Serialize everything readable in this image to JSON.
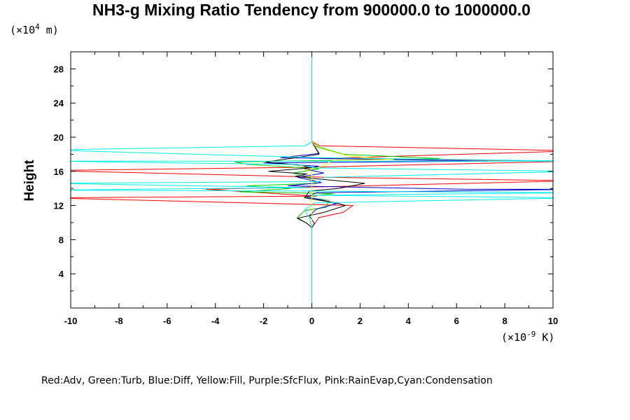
{
  "chart_data": {
    "type": "line",
    "title": "NH3-g Mixing Ratio Tendency from 900000.0 to 1000000.0",
    "ylabel": "Height",
    "xlabel": "",
    "y_unit": {
      "prefix": "(×10",
      "exp": "4",
      "suffix": " m)"
    },
    "x_unit": {
      "prefix": "(×10",
      "exp": "-9",
      "suffix": " K)"
    },
    "xlim": [
      -10,
      10
    ],
    "ylim": [
      0,
      30
    ],
    "x_ticks": [
      -10,
      -8,
      -6,
      -4,
      -2,
      0,
      2,
      4,
      6,
      8,
      10
    ],
    "y_ticks": [
      4,
      8,
      12,
      16,
      20,
      24,
      28
    ],
    "x_tick_labels": [
      "-10",
      "-8",
      "-6",
      "-4",
      "-2",
      "0",
      "2",
      "4",
      "6",
      "8",
      "10"
    ],
    "y_tick_labels": [
      "4",
      "8",
      "12",
      "16",
      "20",
      "24",
      "28"
    ],
    "grid": false,
    "legend_text": "Red:Adv, Green:Turb, Blue:Diff, Yellow:Fill, Purple:SfcFlux, Pink:RainEvap,Cyan:Condensation",
    "series": [
      {
        "color": "#ff0000",
        "points": [
          [
            0,
            0
          ],
          [
            0,
            9.4
          ],
          [
            0.1,
            9.8
          ],
          [
            0.3,
            10.6
          ],
          [
            1.3,
            11.2
          ],
          [
            1.7,
            12.0
          ],
          [
            -11,
            12.9
          ],
          [
            0.2,
            13.1
          ],
          [
            -4.4,
            13.9
          ],
          [
            0.5,
            14.2
          ],
          [
            11,
            14.9
          ],
          [
            0.6,
            15.3
          ],
          [
            -11,
            16.1
          ],
          [
            0.2,
            16.5
          ],
          [
            11,
            17.2
          ],
          [
            0.3,
            17.5
          ],
          [
            11,
            18.4
          ],
          [
            0.3,
            19.0
          ],
          [
            0,
            19.5
          ],
          [
            0,
            30
          ]
        ]
      },
      {
        "color": "#00cc00",
        "points": [
          [
            0,
            0
          ],
          [
            0,
            9.4
          ],
          [
            -0.2,
            9.9
          ],
          [
            -0.6,
            10.6
          ],
          [
            -0.3,
            11.4
          ],
          [
            0.6,
            11.8
          ],
          [
            0.7,
            12.6
          ],
          [
            -0.3,
            13.0
          ],
          [
            0.9,
            13.4
          ],
          [
            -3.0,
            13.6
          ],
          [
            -0.9,
            14.0
          ],
          [
            -2.7,
            14.3
          ],
          [
            0.2,
            14.6
          ],
          [
            -0.1,
            15.3
          ],
          [
            -0.8,
            15.8
          ],
          [
            0.3,
            16.3
          ],
          [
            -2.6,
            16.8
          ],
          [
            -3.2,
            17.1
          ],
          [
            5.3,
            17.5
          ],
          [
            1.3,
            18.0
          ],
          [
            0.2,
            18.9
          ],
          [
            0,
            19.5
          ],
          [
            0,
            30
          ]
        ]
      },
      {
        "color": "#0000cc",
        "points": [
          [
            0,
            0
          ],
          [
            0,
            9.4
          ],
          [
            0.1,
            9.9
          ],
          [
            -0.1,
            10.8
          ],
          [
            0.2,
            11.6
          ],
          [
            1.0,
            12.2
          ],
          [
            0.5,
            12.6
          ],
          [
            -0.2,
            13.0
          ],
          [
            0.2,
            13.5
          ],
          [
            11,
            13.9
          ],
          [
            6.4,
            13.9
          ],
          [
            -1.0,
            14.3
          ],
          [
            0.4,
            14.7
          ],
          [
            -0.6,
            15.3
          ],
          [
            0.5,
            15.8
          ],
          [
            -0.3,
            16.3
          ],
          [
            0.3,
            16.6
          ],
          [
            -2.0,
            17.0
          ],
          [
            7.3,
            17.2
          ],
          [
            -1.3,
            17.6
          ],
          [
            0.3,
            18.1
          ],
          [
            0,
            19.5
          ],
          [
            0,
            30
          ]
        ]
      },
      {
        "color": "#000000",
        "points": [
          [
            0,
            0
          ],
          [
            0,
            9.4
          ],
          [
            -0.2,
            9.9
          ],
          [
            -0.6,
            10.5
          ],
          [
            0.5,
            11.2
          ],
          [
            1.4,
            12.0
          ],
          [
            1.0,
            12.3
          ],
          [
            -0.3,
            12.9
          ],
          [
            -0.1,
            13.7
          ],
          [
            1.1,
            14.0
          ],
          [
            2.2,
            14.6
          ],
          [
            0.3,
            15.1
          ],
          [
            -0.7,
            15.4
          ],
          [
            -0.2,
            15.7
          ],
          [
            -1.8,
            16.0
          ],
          [
            -0.1,
            16.4
          ],
          [
            -0.4,
            16.7
          ],
          [
            -1.9,
            17.1
          ],
          [
            0.3,
            18.0
          ],
          [
            0,
            19.5
          ],
          [
            0,
            30
          ]
        ]
      },
      {
        "color": "#ffff00",
        "points": [
          [
            0,
            0
          ],
          [
            0,
            16.0
          ],
          [
            -0.3,
            16.2
          ],
          [
            0.3,
            16.5
          ],
          [
            0.9,
            17.3
          ],
          [
            3.4,
            17.4
          ],
          [
            1.5,
            17.8
          ],
          [
            0.2,
            18.8
          ],
          [
            0,
            19.5
          ],
          [
            0,
            30
          ]
        ]
      },
      {
        "color": "#00eeee",
        "points": [
          [
            0,
            0
          ],
          [
            0,
            9.4
          ],
          [
            -0.1,
            10.5
          ],
          [
            -0.3,
            11.5
          ],
          [
            0.1,
            12.3
          ],
          [
            11,
            12.9
          ],
          [
            0.1,
            13.2
          ],
          [
            11,
            13.5
          ],
          [
            -0.2,
            13.7
          ],
          [
            -11,
            13.8
          ],
          [
            -0.1,
            14.1
          ],
          [
            -11,
            14.6
          ],
          [
            0.3,
            14.8
          ],
          [
            0.5,
            15.3
          ],
          [
            11,
            16.0
          ],
          [
            0.2,
            16.4
          ],
          [
            -0.6,
            16.8
          ],
          [
            -11,
            17.2
          ],
          [
            11,
            17.2
          ],
          [
            0.3,
            17.6
          ],
          [
            -11,
            18.5
          ],
          [
            -0.3,
            19.0
          ],
          [
            0,
            19.4
          ],
          [
            0,
            30
          ]
        ]
      }
    ]
  }
}
